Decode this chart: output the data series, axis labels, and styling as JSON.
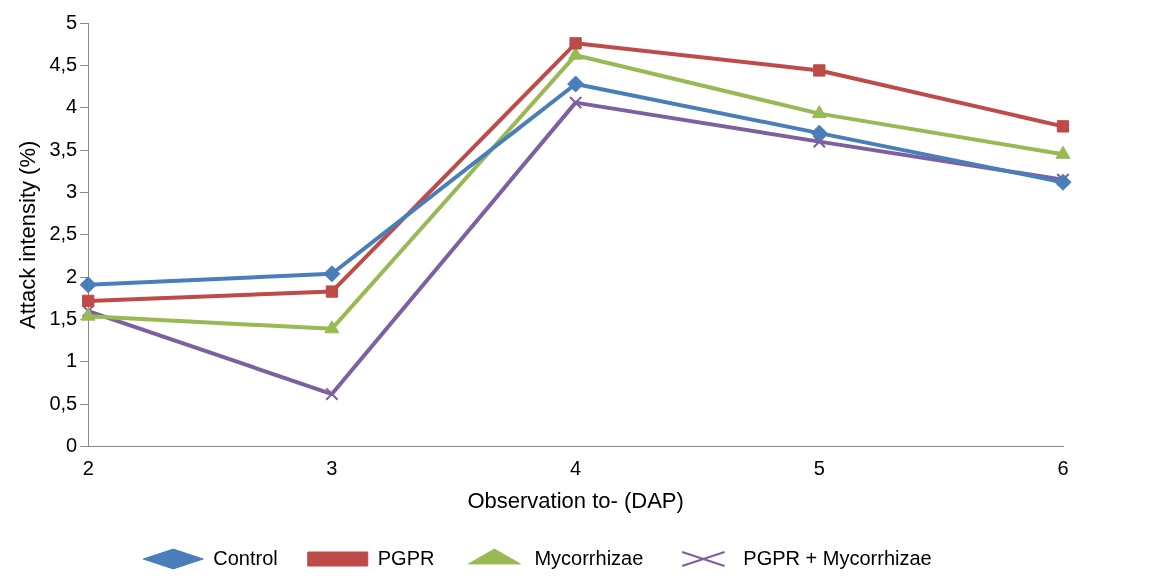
{
  "chart_data": {
    "type": "line",
    "xlabel": "Observation to- (DAP)",
    "ylabel": "Attack intensity (%)",
    "categories": [
      "2",
      "3",
      "4",
      "5",
      "6"
    ],
    "ylim": [
      0,
      5
    ],
    "yticks": [
      0,
      {
        "value": 0.5,
        "label": "0,5"
      },
      1,
      {
        "value": 1.5,
        "label": "1,5"
      },
      2,
      {
        "value": 2.5,
        "label": "2,5"
      },
      3,
      {
        "value": 3.5,
        "label": "3,5"
      },
      4,
      {
        "value": 4.5,
        "label": "4,5"
      },
      5
    ],
    "grid": false,
    "legend": "bottom",
    "line_style": "solid",
    "series": [
      {
        "name": "Control",
        "color": "#4a7ebb",
        "marker": "diamond",
        "values": [
          1.91,
          2.04,
          4.28,
          3.7,
          3.12
        ]
      },
      {
        "name": "PGPR",
        "color": "#be4b48",
        "marker": "square",
        "values": [
          1.72,
          1.83,
          4.76,
          4.44,
          3.78
        ]
      },
      {
        "name": "Mycorrhizae",
        "color": "#98b954",
        "marker": "triangle",
        "values": [
          1.54,
          1.39,
          4.62,
          3.93,
          3.45
        ]
      },
      {
        "name": "PGPR + Mycorrhizae",
        "color": "#7d60a0",
        "marker": "cross",
        "values": [
          1.6,
          0.62,
          4.06,
          3.6,
          3.15
        ]
      }
    ]
  }
}
